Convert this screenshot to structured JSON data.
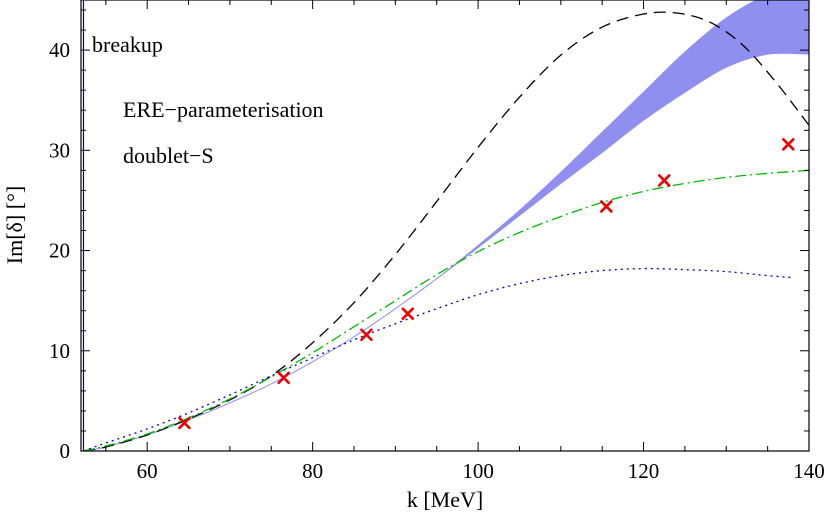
{
  "chart_data": {
    "type": "line",
    "title": "",
    "xlabel": "k [MeV]",
    "ylabel": "Im[δ] [°]",
    "xlim": [
      52,
      140
    ],
    "ylim": [
      0,
      45
    ],
    "x_ticks": [
      60,
      80,
      100,
      120,
      140
    ],
    "y_ticks": [
      0,
      10,
      20,
      30,
      40
    ],
    "grid": false,
    "breakup_k": 52.3,
    "annotations": [
      {
        "text": "breakup"
      },
      {
        "text": "ERE−parameterisation"
      },
      {
        "text": "doublet−S"
      }
    ],
    "series": [
      {
        "name": "band",
        "style": "filled-band",
        "color": "#8f8ff0",
        "x": [
          52.3,
          55,
          60,
          65,
          70,
          75,
          80,
          85,
          90,
          95,
          100,
          105,
          110,
          115,
          120,
          125,
          130,
          135,
          140
        ],
        "lower": [
          0.0,
          0.4,
          1.6,
          3.1,
          4.8,
          6.7,
          8.9,
          11.4,
          14.2,
          17.2,
          20.3,
          23.5,
          26.7,
          29.8,
          33.0,
          35.8,
          38.3,
          39.6,
          39.6
        ],
        "upper": [
          0.0,
          0.4,
          1.6,
          3.1,
          4.8,
          6.7,
          8.9,
          11.4,
          14.2,
          17.2,
          20.5,
          24.0,
          27.8,
          31.8,
          35.8,
          39.8,
          43.2,
          45.5,
          46.5
        ]
      },
      {
        "name": "dashed",
        "style": "dashed",
        "color": "#000000",
        "x": [
          52.3,
          55,
          60,
          65,
          70,
          75,
          80,
          85,
          90,
          95,
          100,
          105,
          110,
          115,
          120,
          124,
          128,
          132,
          136,
          140
        ],
        "y": [
          0.0,
          0.4,
          1.6,
          3.2,
          5.1,
          7.5,
          10.8,
          14.8,
          19.6,
          24.9,
          30.3,
          35.3,
          39.5,
          42.3,
          43.6,
          43.7,
          42.8,
          40.5,
          36.8,
          32.5
        ]
      },
      {
        "name": "dash-dot",
        "style": "dashdot",
        "color": "#00bb00",
        "x": [
          52.3,
          55,
          60,
          65,
          70,
          75,
          80,
          85,
          90,
          95,
          100,
          105,
          110,
          115,
          120,
          125,
          130,
          135,
          140
        ],
        "y": [
          0.0,
          0.5,
          1.7,
          3.3,
          5.2,
          7.4,
          9.8,
          12.4,
          15.0,
          17.6,
          19.9,
          21.8,
          23.4,
          24.8,
          25.9,
          26.7,
          27.3,
          27.7,
          28.0
        ]
      },
      {
        "name": "dotted",
        "style": "dotted",
        "color": "#0000cc",
        "x": [
          52.3,
          55,
          60,
          65,
          70,
          75,
          80,
          85,
          90,
          95,
          100,
          105,
          110,
          115,
          120,
          125,
          130,
          135,
          138
        ],
        "y": [
          0.0,
          0.8,
          2.2,
          3.8,
          5.6,
          7.5,
          9.3,
          11.1,
          12.7,
          14.2,
          15.6,
          16.7,
          17.5,
          18.0,
          18.2,
          18.1,
          17.9,
          17.5,
          17.3
        ]
      }
    ],
    "markers": {
      "name": "data points",
      "symbol": "x",
      "color": "#ee0000",
      "x": [
        64.5,
        76.5,
        86.5,
        91.5,
        115.5,
        122.5,
        137.5
      ],
      "y": [
        2.8,
        7.3,
        11.6,
        13.7,
        24.4,
        27.0,
        30.6
      ]
    }
  }
}
